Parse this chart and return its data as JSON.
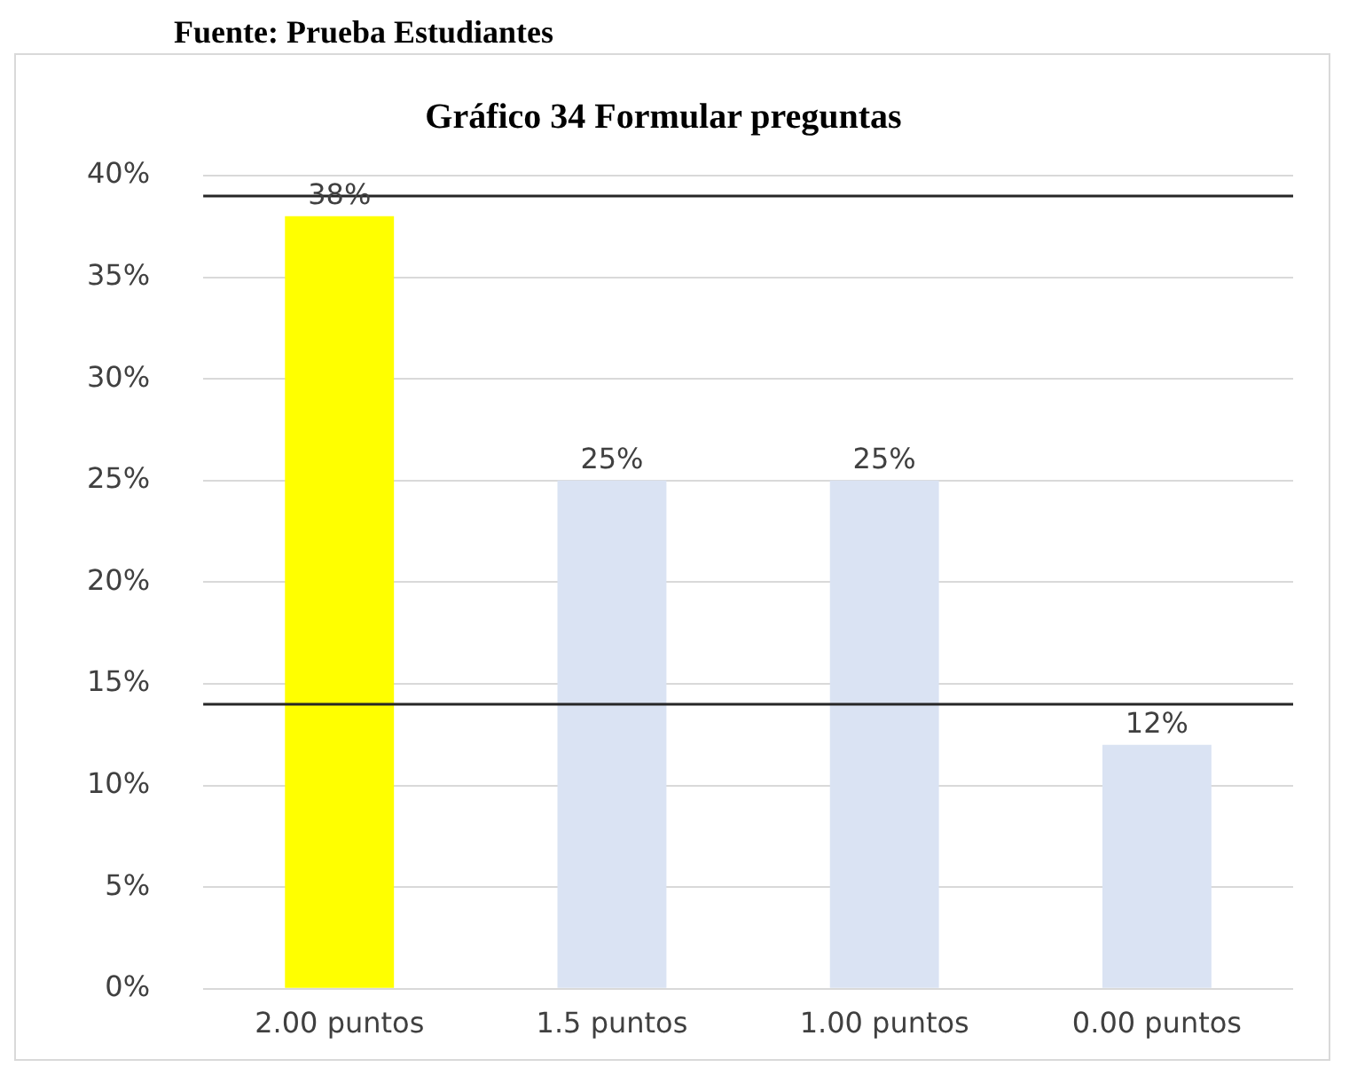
{
  "chart_data": {
    "type": "bar",
    "title": "Gráfico 34 Formular preguntas",
    "annotations": [
      "Fuente: Prueba Estudiantes"
    ],
    "categories": [
      "2.00 puntos",
      "1.5 puntos",
      "1.00 puntos",
      "0.00 puntos"
    ],
    "values": [
      38,
      25,
      25,
      12
    ],
    "colors": [
      "#ffff00",
      "#dae3f3",
      "#dae3f3",
      "#dae3f3"
    ],
    "value_labels": [
      "38%",
      "25%",
      "25%",
      "12%"
    ],
    "ylim": [
      0,
      40
    ],
    "yticks": [
      {
        "value": 0,
        "label": "0%"
      },
      {
        "value": 5,
        "label": "5%"
      },
      {
        "value": 10,
        "label": "10%"
      },
      {
        "value": 15,
        "label": "15%"
      },
      {
        "value": 20,
        "label": "20%"
      },
      {
        "value": 25,
        "label": "25%"
      },
      {
        "value": 30,
        "label": "30%"
      },
      {
        "value": 35,
        "label": "35%"
      },
      {
        "value": 40,
        "label": "40%"
      }
    ],
    "ref_lines": [
      {
        "axis": "y",
        "value": 39,
        "color": "#262626"
      },
      {
        "axis": "y",
        "value": 14,
        "color": "#262626"
      }
    ],
    "grid": "y",
    "legend": false
  }
}
